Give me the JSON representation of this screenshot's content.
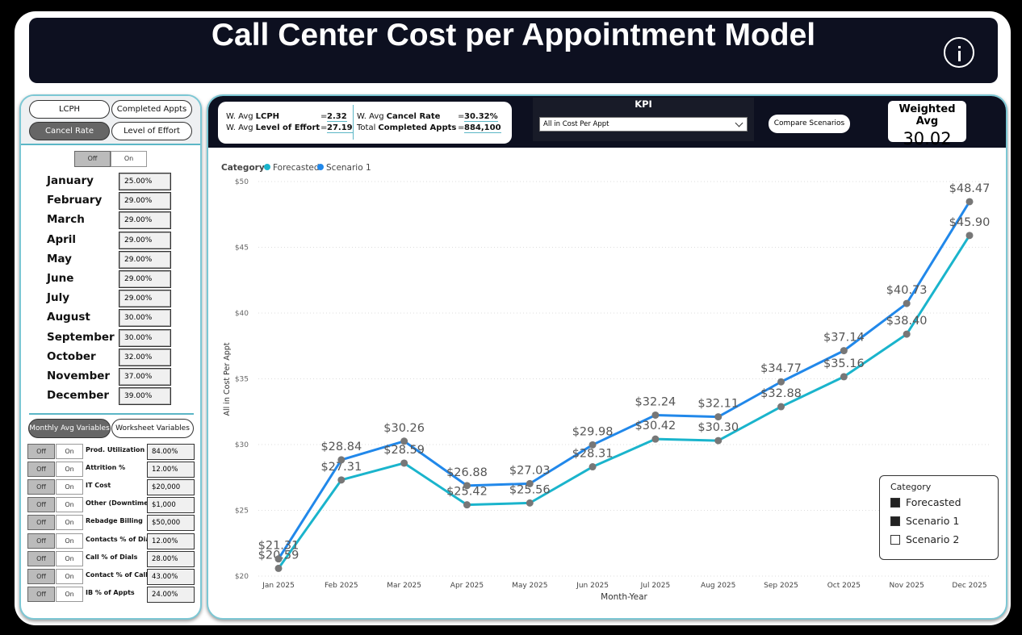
{
  "header": {
    "title": "Call Center Cost per Appointment Model"
  },
  "sidebar": {
    "tabs": [
      "LCPH",
      "Completed Appts",
      "Cancel Rate",
      "Level of Effort"
    ],
    "toggle": [
      "Off",
      "On"
    ],
    "months": [
      {
        "name": "January",
        "value": "25.00%"
      },
      {
        "name": "February",
        "value": "29.00%"
      },
      {
        "name": "March",
        "value": "29.00%"
      },
      {
        "name": "April",
        "value": "29.00%"
      },
      {
        "name": "May",
        "value": "29.00%"
      },
      {
        "name": "June",
        "value": "29.00%"
      },
      {
        "name": "July",
        "value": "29.00%"
      },
      {
        "name": "August",
        "value": "30.00%"
      },
      {
        "name": "September",
        "value": "30.00%"
      },
      {
        "name": "October",
        "value": "32.00%"
      },
      {
        "name": "November",
        "value": "37.00%"
      },
      {
        "name": "December",
        "value": "39.00%"
      }
    ],
    "variable_tabs": [
      "Monthly Avg Variables",
      "Worksheet Variables"
    ],
    "variables": [
      {
        "name": "Prod. Utilization",
        "value": "84.00%"
      },
      {
        "name": "Attrition %",
        "value": "12.00%"
      },
      {
        "name": "IT Cost",
        "value": "$20,000"
      },
      {
        "name": "Other (Downtime)",
        "value": "$1,000"
      },
      {
        "name": "Rebadge Billing",
        "value": "$50,000"
      },
      {
        "name": "Contacts % of Dials",
        "value": "12.00%"
      },
      {
        "name": "Call % of Dials",
        "value": "28.00%"
      },
      {
        "name": "Contact % of Calls",
        "value": "43.00%"
      },
      {
        "name": "IB % of Appts",
        "value": "24.00%"
      }
    ]
  },
  "kpis": {
    "equals": "=",
    "items": [
      {
        "prefix": "W. Avg",
        "label": "LCPH",
        "value": "2.32"
      },
      {
        "prefix": "W. Avg",
        "label": "Level of Effort",
        "value": "27.19"
      },
      {
        "prefix": "W. Avg",
        "label": "Cancel Rate",
        "value": "30.32%"
      },
      {
        "prefix": "Total",
        "label": "Completed Appts",
        "value": "884,100"
      }
    ]
  },
  "kpi_select": {
    "label": "KPI",
    "value": "All in Cost Per Appt"
  },
  "compare_button": "Compare Scenarios",
  "weighted_avg": {
    "label": "Weighted Avg",
    "value": "30.02"
  },
  "slicer": {
    "title": "Category",
    "options": [
      {
        "label": "Forecasted",
        "checked": true
      },
      {
        "label": "Scenario 1",
        "checked": true
      },
      {
        "label": "Scenario 2",
        "checked": false
      }
    ]
  },
  "chart_data": {
    "type": "line",
    "legend_title": "Category",
    "x_label": "Month-Year",
    "y_label": "All in Cost Per Appt",
    "categories": [
      "Jan 2025",
      "Feb 2025",
      "Mar 2025",
      "Apr 2025",
      "May 2025",
      "Jun 2025",
      "Jul 2025",
      "Aug 2025",
      "Sep 2025",
      "Oct 2025",
      "Nov 2025",
      "Dec 2025"
    ],
    "series": [
      {
        "name": "Forecasted",
        "color": "#1ab4cc",
        "values": [
          20.59,
          27.31,
          28.59,
          25.42,
          25.56,
          28.31,
          30.42,
          30.3,
          32.88,
          35.16,
          38.4,
          45.9
        ],
        "value_labels": [
          "$20.59",
          "$27.31",
          "$28.59",
          "$25.42",
          "$25.56",
          "$28.31",
          "$30.42",
          "$30.30",
          "$32.88",
          "$35.16",
          "$38.40",
          "$45.90"
        ]
      },
      {
        "name": "Scenario 1",
        "color": "#2188ea",
        "values": [
          21.31,
          28.84,
          30.26,
          26.88,
          27.03,
          29.98,
          32.24,
          32.11,
          34.77,
          37.14,
          40.73,
          48.47
        ],
        "value_labels": [
          "$21.31",
          "$28.84",
          "$30.26",
          "$26.88",
          "$27.03",
          "$29.98",
          "$32.24",
          "$32.11",
          "$34.77",
          "$37.14",
          "$40.73",
          "$48.47"
        ]
      }
    ],
    "ylim": [
      20,
      50
    ],
    "yticks": [
      {
        "value": 20,
        "label": "$20"
      },
      {
        "value": 25,
        "label": "$25"
      },
      {
        "value": 30,
        "label": "$30"
      },
      {
        "value": 35,
        "label": "$35"
      },
      {
        "value": 40,
        "label": "$40"
      },
      {
        "value": 45,
        "label": "$45"
      },
      {
        "value": 50,
        "label": "$50"
      }
    ],
    "grid": true,
    "marker_color": "#777777"
  }
}
